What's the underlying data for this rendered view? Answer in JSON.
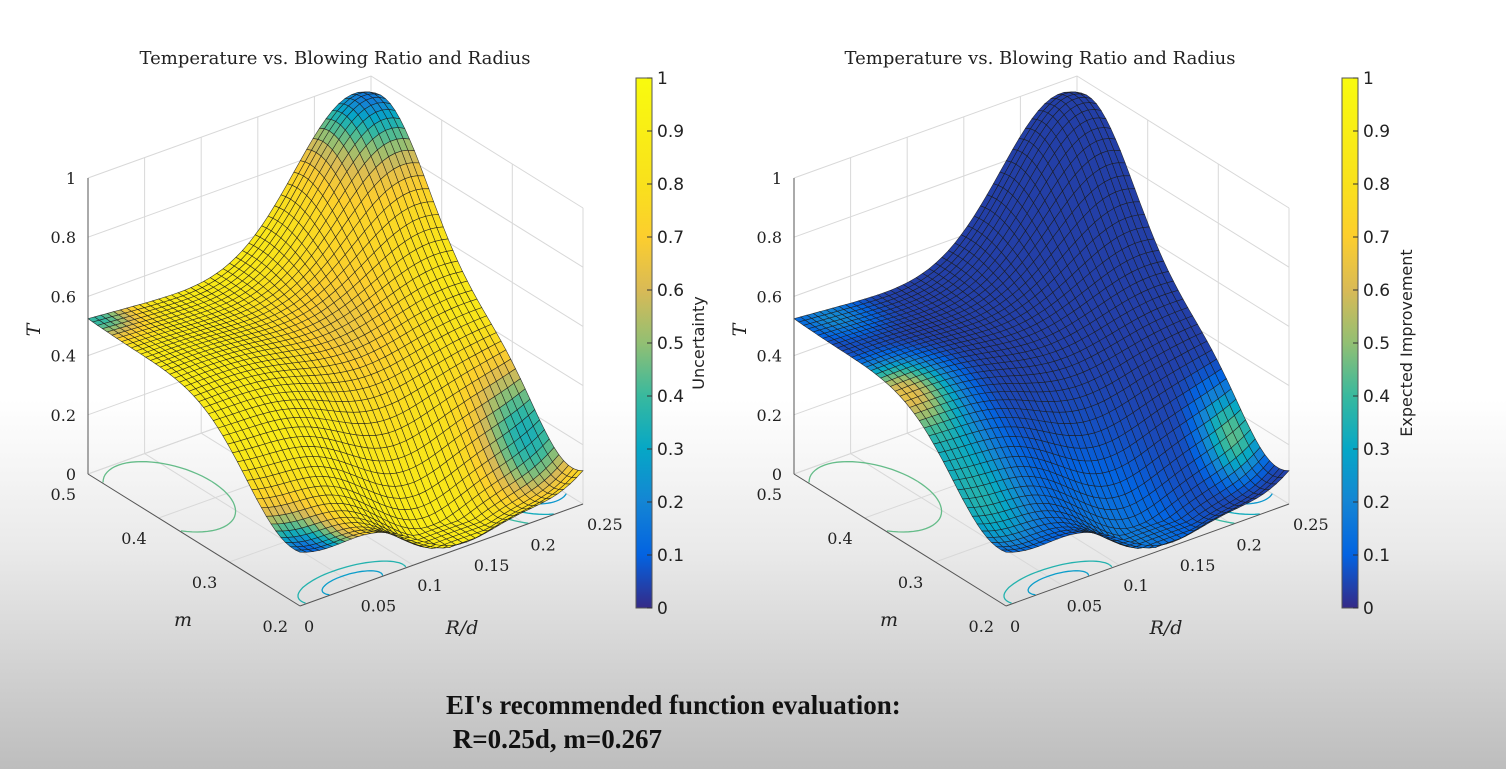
{
  "chart_data": [
    {
      "type": "surface",
      "title": "Temperature vs. Blowing Ratio and Radius",
      "xlabel": "R/d",
      "ylabel": "m",
      "zlabel": "T",
      "xlim": [
        0,
        0.25
      ],
      "ylim": [
        0.2,
        0.5
      ],
      "zlim": [
        0,
        1
      ],
      "x_ticks": [
        "0",
        "0.05",
        "0.1",
        "0.15",
        "0.2",
        "0.25"
      ],
      "y_ticks": [
        "0.2",
        "0.3",
        "0.4",
        "0.5"
      ],
      "z_ticks": [
        "0",
        "0.2",
        "0.4",
        "0.6",
        "0.8",
        "1"
      ],
      "colorbar": {
        "label": "Uncertainty",
        "range": [
          0,
          1
        ],
        "ticks": [
          "0",
          "0.1",
          "0.2",
          "0.3",
          "0.4",
          "0.5",
          "0.6",
          "0.7",
          "0.8",
          "0.9",
          "1"
        ]
      },
      "colormap": "parula",
      "contours_on_floor": true,
      "grid": true
    },
    {
      "type": "surface",
      "title": "Temperature vs. Blowing Ratio and Radius",
      "xlabel": "R/d",
      "ylabel": "m",
      "zlabel": "T",
      "xlim": [
        0,
        0.25
      ],
      "ylim": [
        0.2,
        0.5
      ],
      "zlim": [
        0,
        1
      ],
      "x_ticks": [
        "0",
        "0.05",
        "0.1",
        "0.15",
        "0.2",
        "0.25"
      ],
      "y_ticks": [
        "0.2",
        "0.3",
        "0.4",
        "0.5"
      ],
      "z_ticks": [
        "0",
        "0.2",
        "0.4",
        "0.6",
        "0.8",
        "1"
      ],
      "colorbar": {
        "label": "Expected Improvement",
        "range": [
          0,
          1
        ],
        "ticks": [
          "0",
          "0.1",
          "0.2",
          "0.3",
          "0.4",
          "0.5",
          "0.6",
          "0.7",
          "0.8",
          "0.9",
          "1"
        ]
      },
      "colormap": "parula",
      "contours_on_floor": true,
      "grid": true
    }
  ],
  "caption": {
    "line1": "EI's recommended function evaluation:",
    "line2": " R=0.25d, m=0.267"
  }
}
